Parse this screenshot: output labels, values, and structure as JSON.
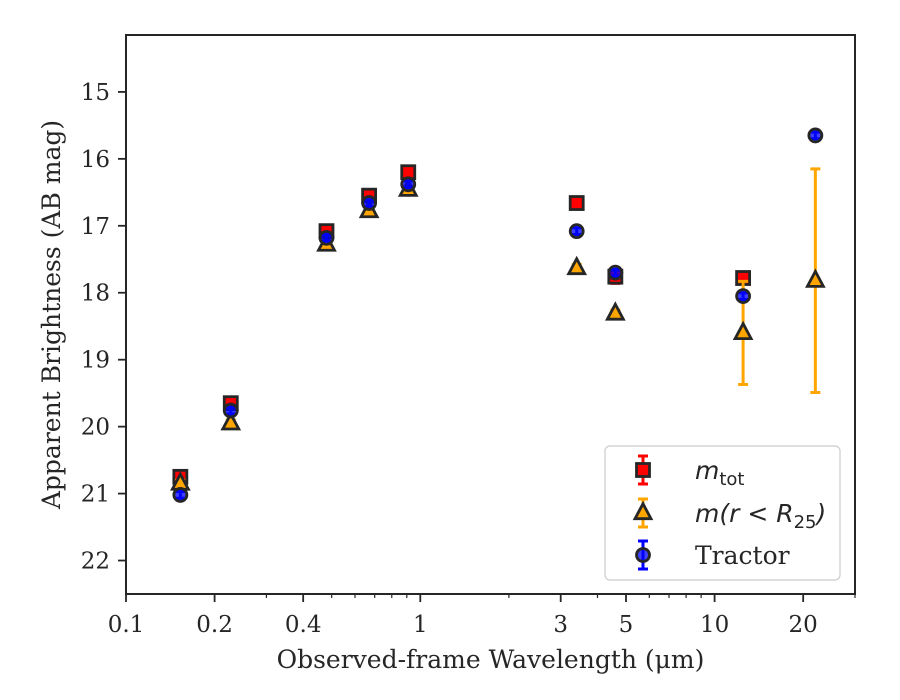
{
  "chart_data": {
    "type": "scatter",
    "xlabel": "Observed-frame Wavelength (μm)",
    "ylabel": "Apparent Brightness (AB mag)",
    "xscale": "log",
    "xlim": [
      0.1,
      30
    ],
    "ylim": [
      22.5,
      14.15
    ],
    "y_inverted": true,
    "grid": false,
    "legend_position": "lower-right",
    "x_ticks": [
      {
        "value": 0.1,
        "label": "0.1"
      },
      {
        "value": 0.2,
        "label": "0.2"
      },
      {
        "value": 0.4,
        "label": "0.4"
      },
      {
        "value": 1,
        "label": "1"
      },
      {
        "value": 3,
        "label": "3"
      },
      {
        "value": 5,
        "label": "5"
      },
      {
        "value": 10,
        "label": "10"
      },
      {
        "value": 20,
        "label": "20"
      }
    ],
    "y_ticks": [
      {
        "value": 15,
        "label": "15"
      },
      {
        "value": 16,
        "label": "16"
      },
      {
        "value": 17,
        "label": "17"
      },
      {
        "value": 18,
        "label": "18"
      },
      {
        "value": 19,
        "label": "19"
      },
      {
        "value": 20,
        "label": "20"
      },
      {
        "value": 21,
        "label": "21"
      },
      {
        "value": 22,
        "label": "22"
      }
    ],
    "series": [
      {
        "legend_base": "m",
        "legend_sub": "tot",
        "marker": "square",
        "color": "#ff0000",
        "errcolor": "#ff0000",
        "points": [
          {
            "x": 0.153,
            "y": 20.75,
            "err": 0.05
          },
          {
            "x": 0.227,
            "y": 19.65,
            "err": 0.05
          },
          {
            "x": 0.48,
            "y": 17.08,
            "err": 0.05
          },
          {
            "x": 0.67,
            "y": 16.55,
            "err": 0.05
          },
          {
            "x": 0.91,
            "y": 16.2,
            "err": 0.05
          },
          {
            "x": 3.4,
            "y": 16.66,
            "err": 0.05
          },
          {
            "x": 4.6,
            "y": 17.76,
            "err": 0.1
          },
          {
            "x": 12.5,
            "y": 17.78,
            "err": 0.05
          }
        ]
      },
      {
        "legend_base": "m",
        "legend_paren": "(r < R",
        "legend_sub": "25",
        "legend_close": ")",
        "marker": "triangle",
        "color": "#ffa500",
        "errcolor": "#ffa500",
        "points": [
          {
            "x": 0.153,
            "y": 20.85,
            "err": 0.05
          },
          {
            "x": 0.227,
            "y": 19.95,
            "err": 0.05
          },
          {
            "x": 0.48,
            "y": 17.28,
            "err": 0.05
          },
          {
            "x": 0.67,
            "y": 16.78,
            "err": 0.05
          },
          {
            "x": 0.91,
            "y": 16.46,
            "err": 0.05
          },
          {
            "x": 3.4,
            "y": 17.63,
            "err": 0.05
          },
          {
            "x": 4.6,
            "y": 18.31,
            "err": 0.05
          },
          {
            "x": 12.5,
            "y": 18.6,
            "err": 0.77
          },
          {
            "x": 22,
            "y": 17.82,
            "err": 1.67
          }
        ]
      },
      {
        "name": "Tractor",
        "marker": "circle",
        "color": "#0000ff",
        "errcolor": "#0000ff",
        "points": [
          {
            "x": 0.153,
            "y": 21.02,
            "err": 0.05
          },
          {
            "x": 0.227,
            "y": 19.76,
            "err": 0.05
          },
          {
            "x": 0.48,
            "y": 17.18,
            "err": 0.05
          },
          {
            "x": 0.67,
            "y": 16.66,
            "err": 0.05
          },
          {
            "x": 0.91,
            "y": 16.38,
            "err": 0.05
          },
          {
            "x": 3.4,
            "y": 17.08,
            "err": 0.05
          },
          {
            "x": 4.6,
            "y": 17.7,
            "err": 0.05
          },
          {
            "x": 12.5,
            "y": 18.05,
            "err": 0.05
          },
          {
            "x": 22,
            "y": 15.65,
            "err": 0.05
          }
        ]
      }
    ]
  }
}
